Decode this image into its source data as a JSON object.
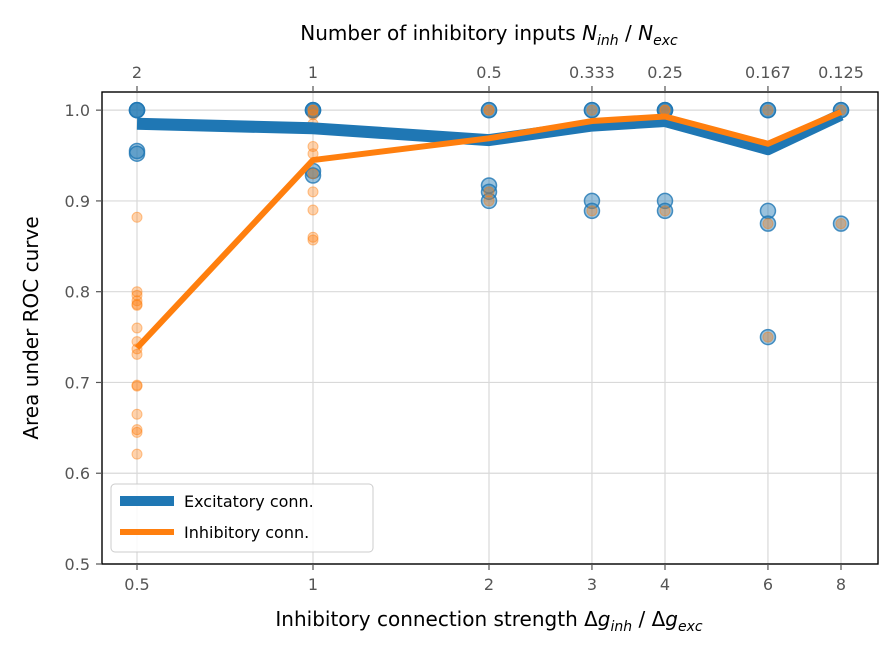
{
  "chart_data": {
    "type": "line",
    "xlabel_main": "Inhibitory connection strength  Δ",
    "xlabel_main_sub1": "inh",
    "xlabel_main_mid": " / Δ",
    "xlabel_main_sub2": "exc",
    "xlabel_g": "g",
    "xlabel_top_main": "Number of inhibitory inputs  ",
    "xlabel_top_N1": "N",
    "xlabel_top_sub1": "inh",
    "xlabel_top_mid": " / ",
    "xlabel_top_N2": "N",
    "xlabel_top_sub2": "exc",
    "ylabel": "Area under ROC curve",
    "x_scale": "log2",
    "x": [
      0.5,
      1,
      2,
      3,
      4,
      6,
      8
    ],
    "xticklabels": [
      "0.5",
      "1",
      "2",
      "3",
      "4",
      "6",
      "8"
    ],
    "top_xticklabels": [
      "2",
      "1",
      "0.5",
      "0.333",
      "0.25",
      "0.167",
      "0.125"
    ],
    "ylim": [
      0.5,
      1.02
    ],
    "yticks": [
      0.5,
      0.6,
      0.7,
      0.8,
      0.9,
      1.0
    ],
    "yticklabels": [
      "0.5",
      "0.6",
      "0.7",
      "0.8",
      "0.9",
      "1.0"
    ],
    "grid": true,
    "legend_position": "lower-left",
    "series": [
      {
        "name": "Excitatory conn.",
        "color": "#1f77b4",
        "mean": [
          0.985,
          0.98,
          0.967,
          0.983,
          0.988,
          0.957,
          0.995
        ],
        "scatter": [
          [
            1.0,
            1.0,
            1.0,
            0.955,
            0.952
          ],
          [
            1.0,
            1.0,
            1.0,
            0.933,
            0.928
          ],
          [
            1.0,
            1.0,
            0.917,
            0.91,
            0.9
          ],
          [
            1.0,
            1.0,
            0.9,
            0.889
          ],
          [
            1.0,
            1.0,
            1.0,
            0.9,
            0.889
          ],
          [
            1.0,
            1.0,
            0.889,
            0.875,
            0.75
          ],
          [
            1.0,
            1.0,
            0.875
          ]
        ]
      },
      {
        "name": "Inhibitory conn.",
        "color": "#ff7f0e",
        "mean": [
          0.738,
          0.945,
          0.969,
          0.988,
          0.993,
          0.963,
          0.998
        ],
        "scatter": [
          [
            0.882,
            0.8,
            0.796,
            0.79,
            0.786,
            0.785,
            0.76,
            0.745,
            0.737,
            0.731,
            0.697,
            0.696,
            0.665,
            0.648,
            0.645,
            0.621
          ],
          [
            1.0,
            1.0,
            0.995,
            0.985,
            0.96,
            0.952,
            0.93,
            0.91,
            0.89,
            0.86,
            0.857
          ],
          [
            1.0,
            1.0,
            0.91,
            0.9
          ],
          [
            1.0,
            0.889
          ],
          [
            1.0,
            1.0,
            0.889
          ],
          [
            1.0,
            0.875,
            0.75
          ],
          [
            1.0,
            0.875
          ]
        ]
      }
    ]
  }
}
